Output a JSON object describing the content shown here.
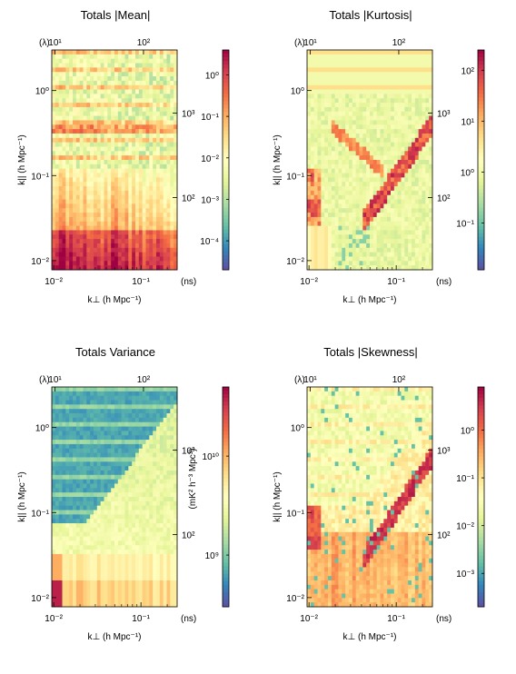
{
  "chart_data": [
    {
      "type": "heatmap",
      "title": "Totals |Mean|",
      "xlabel": "k⊥ (h Mpc⁻¹)",
      "ylabel": "k|| (h Mpc⁻¹)",
      "top_axis_label": "(λ)",
      "right_axis_unit": "(ns)",
      "x_scale": "log",
      "y_scale": "log",
      "xlim": [
        0.0095,
        0.26
      ],
      "ylim": [
        0.0078,
        3.0
      ],
      "x_ticks": [
        {
          "value": 0.01,
          "label": "10⁻²"
        },
        {
          "value": 0.1,
          "label": "10⁻¹"
        }
      ],
      "y_ticks": [
        {
          "value": 0.01,
          "label": "10⁻²"
        },
        {
          "value": 0.1,
          "label": "10⁻¹"
        },
        {
          "value": 1,
          "label": "10⁰"
        }
      ],
      "top_ticks": [
        {
          "value": 10,
          "label": "10¹"
        },
        {
          "value": 100,
          "label": "10²"
        }
      ],
      "top_lim": [
        9.2,
        240
      ],
      "right_ticks": [
        {
          "value": 100,
          "label": "10²"
        },
        {
          "value": 1000,
          "label": "10³"
        }
      ],
      "right_lim": [
        14,
        5600
      ],
      "colorbar": {
        "scale": "log",
        "range": [
          2e-05,
          4
        ],
        "ticks": [
          {
            "value": 0.0001,
            "label": "10⁻⁴"
          },
          {
            "value": 0.001,
            "label": "10⁻³"
          },
          {
            "value": 0.01,
            "label": "10⁻²"
          },
          {
            "value": 0.1,
            "label": "10⁻¹"
          },
          {
            "value": 1,
            "label": "10⁰"
          }
        ],
        "label": ""
      },
      "pattern": "mean"
    },
    {
      "type": "heatmap",
      "title": "Totals |Kurtosis|",
      "xlabel": "k⊥ (h Mpc⁻¹)",
      "ylabel": "k|| (h Mpc⁻¹)",
      "top_axis_label": "(λ)",
      "right_axis_unit": "(ns)",
      "x_scale": "log",
      "y_scale": "log",
      "xlim": [
        0.0095,
        0.26
      ],
      "ylim": [
        0.0078,
        3.0
      ],
      "x_ticks": [
        {
          "value": 0.01,
          "label": "10⁻²"
        },
        {
          "value": 0.1,
          "label": "10⁻¹"
        }
      ],
      "y_ticks": [
        {
          "value": 0.01,
          "label": "10⁻²"
        },
        {
          "value": 0.1,
          "label": "10⁻¹"
        },
        {
          "value": 1,
          "label": "10⁰"
        }
      ],
      "top_ticks": [
        {
          "value": 10,
          "label": "10¹"
        },
        {
          "value": 100,
          "label": "10²"
        }
      ],
      "top_lim": [
        9.2,
        240
      ],
      "right_ticks": [
        {
          "value": 100,
          "label": "10²"
        },
        {
          "value": 1000,
          "label": "10³"
        }
      ],
      "right_lim": [
        14,
        5600
      ],
      "colorbar": {
        "scale": "log",
        "range": [
          0.012,
          250
        ],
        "ticks": [
          {
            "value": 0.1,
            "label": "10⁻¹"
          },
          {
            "value": 1,
            "label": "10⁰"
          },
          {
            "value": 10,
            "label": "10¹"
          },
          {
            "value": 100,
            "label": "10²"
          }
        ],
        "label": ""
      },
      "pattern": "kurtosis"
    },
    {
      "type": "heatmap",
      "title": "Totals Variance",
      "xlabel": "k⊥ (h Mpc⁻¹)",
      "ylabel": "k|| (h Mpc⁻¹)",
      "top_axis_label": "(λ)",
      "right_axis_unit": "(ns)",
      "x_scale": "log",
      "y_scale": "log",
      "xlim": [
        0.0095,
        0.26
      ],
      "ylim": [
        0.0078,
        3.0
      ],
      "x_ticks": [
        {
          "value": 0.01,
          "label": "10⁻²"
        },
        {
          "value": 0.1,
          "label": "10⁻¹"
        }
      ],
      "y_ticks": [
        {
          "value": 0.01,
          "label": "10⁻²"
        },
        {
          "value": 0.1,
          "label": "10⁻¹"
        },
        {
          "value": 1,
          "label": "10⁰"
        }
      ],
      "top_ticks": [
        {
          "value": 10,
          "label": "10¹"
        },
        {
          "value": 100,
          "label": "10²"
        }
      ],
      "top_lim": [
        9.2,
        240
      ],
      "right_ticks": [
        {
          "value": 100,
          "label": "10²"
        },
        {
          "value": 1000,
          "label": "10³"
        }
      ],
      "right_lim": [
        14,
        5600
      ],
      "colorbar": {
        "scale": "log",
        "range": [
          300000000,
          50000000000
        ],
        "ticks": [
          {
            "value": 1000000000,
            "label": "10⁹"
          },
          {
            "value": 10000000000,
            "label": "10¹⁰"
          }
        ],
        "label": "(mK² h⁻³ Mpc³)"
      },
      "pattern": "variance"
    },
    {
      "type": "heatmap",
      "title": "Totals |Skewness|",
      "xlabel": "k⊥ (h Mpc⁻¹)",
      "ylabel": "k|| (h Mpc⁻¹)",
      "top_axis_label": "(λ)",
      "right_axis_unit": "(ns)",
      "x_scale": "log",
      "y_scale": "log",
      "xlim": [
        0.0095,
        0.26
      ],
      "ylim": [
        0.0078,
        3.0
      ],
      "x_ticks": [
        {
          "value": 0.01,
          "label": "10⁻²"
        },
        {
          "value": 0.1,
          "label": "10⁻¹"
        }
      ],
      "y_ticks": [
        {
          "value": 0.01,
          "label": "10⁻²"
        },
        {
          "value": 0.1,
          "label": "10⁻¹"
        },
        {
          "value": 1,
          "label": "10⁰"
        }
      ],
      "top_ticks": [
        {
          "value": 10,
          "label": "10¹"
        },
        {
          "value": 100,
          "label": "10²"
        }
      ],
      "top_lim": [
        9.2,
        240
      ],
      "right_ticks": [
        {
          "value": 100,
          "label": "10²"
        },
        {
          "value": 1000,
          "label": "10³"
        }
      ],
      "right_lim": [
        14,
        5600
      ],
      "colorbar": {
        "scale": "log",
        "range": [
          0.0002,
          8
        ],
        "ticks": [
          {
            "value": 0.001,
            "label": "10⁻³"
          },
          {
            "value": 0.01,
            "label": "10⁻²"
          },
          {
            "value": 0.1,
            "label": "10⁻¹"
          },
          {
            "value": 1,
            "label": "10⁰"
          }
        ],
        "label": ""
      },
      "pattern": "skewness"
    }
  ]
}
